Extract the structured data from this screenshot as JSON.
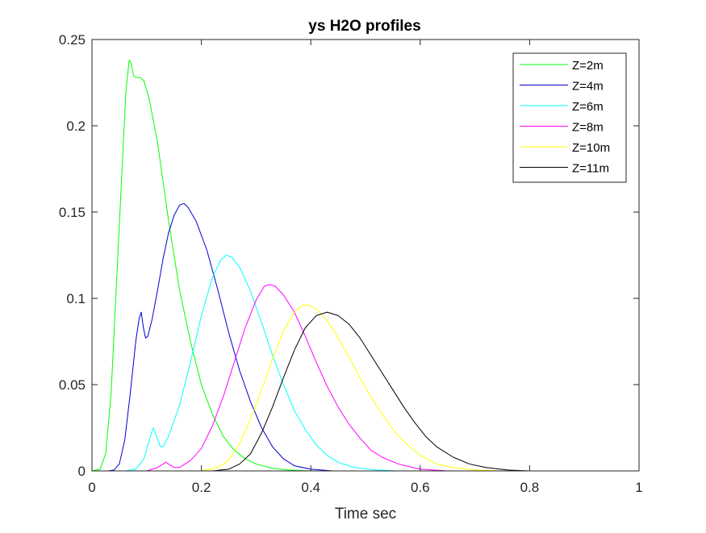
{
  "chart_data": {
    "type": "line",
    "title": "ys H2O profiles",
    "xlabel": "Time sec",
    "ylabel": "",
    "xlim": [
      0,
      1
    ],
    "ylim": [
      0,
      0.25
    ],
    "x_ticks": [
      "0",
      "0.2",
      "0.4",
      "0.6",
      "0.8",
      "1"
    ],
    "y_ticks": [
      "0",
      "0.05",
      "0.1",
      "0.15",
      "0.2",
      "0.25"
    ],
    "grid": false,
    "legend_position": "top-right",
    "series": [
      {
        "name": "Z=2m",
        "color": "#00ff00",
        "points": [
          [
            0,
            0
          ],
          [
            0.015,
            0.001
          ],
          [
            0.025,
            0.01
          ],
          [
            0.035,
            0.045
          ],
          [
            0.045,
            0.11
          ],
          [
            0.055,
            0.175
          ],
          [
            0.062,
            0.22
          ],
          [
            0.068,
            0.238
          ],
          [
            0.072,
            0.236
          ],
          [
            0.076,
            0.229
          ],
          [
            0.08,
            0.228
          ],
          [
            0.088,
            0.228
          ],
          [
            0.095,
            0.226
          ],
          [
            0.105,
            0.215
          ],
          [
            0.12,
            0.19
          ],
          [
            0.14,
            0.145
          ],
          [
            0.16,
            0.105
          ],
          [
            0.18,
            0.075
          ],
          [
            0.2,
            0.05
          ],
          [
            0.22,
            0.033
          ],
          [
            0.24,
            0.02
          ],
          [
            0.26,
            0.012
          ],
          [
            0.28,
            0.007
          ],
          [
            0.3,
            0.004
          ],
          [
            0.33,
            0.0015
          ],
          [
            0.36,
            0.0005
          ],
          [
            0.4,
            0
          ],
          [
            1,
            0
          ]
        ]
      },
      {
        "name": "Z=4m",
        "color": "#0000cd",
        "points": [
          [
            0,
            0
          ],
          [
            0.03,
            0
          ],
          [
            0.04,
            0.0005
          ],
          [
            0.05,
            0.004
          ],
          [
            0.06,
            0.018
          ],
          [
            0.07,
            0.045
          ],
          [
            0.08,
            0.075
          ],
          [
            0.086,
            0.088
          ],
          [
            0.09,
            0.092
          ],
          [
            0.094,
            0.083
          ],
          [
            0.098,
            0.077
          ],
          [
            0.102,
            0.078
          ],
          [
            0.11,
            0.088
          ],
          [
            0.12,
            0.105
          ],
          [
            0.13,
            0.123
          ],
          [
            0.14,
            0.138
          ],
          [
            0.15,
            0.148
          ],
          [
            0.16,
            0.154
          ],
          [
            0.168,
            0.155
          ],
          [
            0.175,
            0.153
          ],
          [
            0.19,
            0.145
          ],
          [
            0.21,
            0.128
          ],
          [
            0.23,
            0.105
          ],
          [
            0.25,
            0.08
          ],
          [
            0.27,
            0.058
          ],
          [
            0.29,
            0.04
          ],
          [
            0.31,
            0.025
          ],
          [
            0.33,
            0.014
          ],
          [
            0.35,
            0.007
          ],
          [
            0.37,
            0.003
          ],
          [
            0.4,
            0.001
          ],
          [
            0.44,
            0
          ],
          [
            1,
            0
          ]
        ]
      },
      {
        "name": "Z=6m",
        "color": "#00ffff",
        "points": [
          [
            0,
            0
          ],
          [
            0.06,
            0
          ],
          [
            0.08,
            0.001
          ],
          [
            0.095,
            0.007
          ],
          [
            0.105,
            0.018
          ],
          [
            0.112,
            0.025
          ],
          [
            0.118,
            0.02
          ],
          [
            0.125,
            0.014
          ],
          [
            0.13,
            0.014
          ],
          [
            0.14,
            0.02
          ],
          [
            0.16,
            0.038
          ],
          [
            0.18,
            0.063
          ],
          [
            0.2,
            0.09
          ],
          [
            0.22,
            0.112
          ],
          [
            0.235,
            0.122
          ],
          [
            0.245,
            0.125
          ],
          [
            0.255,
            0.124
          ],
          [
            0.27,
            0.118
          ],
          [
            0.29,
            0.104
          ],
          [
            0.31,
            0.086
          ],
          [
            0.33,
            0.067
          ],
          [
            0.35,
            0.05
          ],
          [
            0.37,
            0.035
          ],
          [
            0.39,
            0.024
          ],
          [
            0.41,
            0.015
          ],
          [
            0.43,
            0.009
          ],
          [
            0.45,
            0.005
          ],
          [
            0.48,
            0.002
          ],
          [
            0.52,
            0.0005
          ],
          [
            0.56,
            0
          ],
          [
            1,
            0
          ]
        ]
      },
      {
        "name": "Z=8m",
        "color": "#ff00ff",
        "points": [
          [
            0,
            0
          ],
          [
            0.1,
            0
          ],
          [
            0.12,
            0.002
          ],
          [
            0.13,
            0.004
          ],
          [
            0.135,
            0.005
          ],
          [
            0.14,
            0.004
          ],
          [
            0.15,
            0.002
          ],
          [
            0.16,
            0.002
          ],
          [
            0.18,
            0.006
          ],
          [
            0.2,
            0.013
          ],
          [
            0.22,
            0.026
          ],
          [
            0.24,
            0.043
          ],
          [
            0.26,
            0.063
          ],
          [
            0.28,
            0.083
          ],
          [
            0.3,
            0.099
          ],
          [
            0.315,
            0.107
          ],
          [
            0.325,
            0.108
          ],
          [
            0.335,
            0.107
          ],
          [
            0.35,
            0.102
          ],
          [
            0.37,
            0.092
          ],
          [
            0.39,
            0.078
          ],
          [
            0.41,
            0.063
          ],
          [
            0.43,
            0.049
          ],
          [
            0.45,
            0.037
          ],
          [
            0.47,
            0.027
          ],
          [
            0.49,
            0.019
          ],
          [
            0.51,
            0.012
          ],
          [
            0.53,
            0.008
          ],
          [
            0.56,
            0.004
          ],
          [
            0.6,
            0.001
          ],
          [
            0.65,
            0
          ],
          [
            1,
            0
          ]
        ]
      },
      {
        "name": "Z=10m",
        "color": "#ffff00",
        "points": [
          [
            0,
            0
          ],
          [
            0.2,
            0
          ],
          [
            0.23,
            0.002
          ],
          [
            0.25,
            0.006
          ],
          [
            0.27,
            0.016
          ],
          [
            0.29,
            0.03
          ],
          [
            0.31,
            0.047
          ],
          [
            0.33,
            0.065
          ],
          [
            0.35,
            0.081
          ],
          [
            0.37,
            0.092
          ],
          [
            0.385,
            0.096
          ],
          [
            0.395,
            0.096
          ],
          [
            0.41,
            0.094
          ],
          [
            0.43,
            0.087
          ],
          [
            0.45,
            0.077
          ],
          [
            0.47,
            0.066
          ],
          [
            0.49,
            0.054
          ],
          [
            0.51,
            0.043
          ],
          [
            0.53,
            0.033
          ],
          [
            0.55,
            0.024
          ],
          [
            0.57,
            0.017
          ],
          [
            0.6,
            0.009
          ],
          [
            0.63,
            0.004
          ],
          [
            0.66,
            0.002
          ],
          [
            0.7,
            0.0005
          ],
          [
            0.75,
            0
          ],
          [
            1,
            0
          ]
        ]
      },
      {
        "name": "Z=11m",
        "color": "#000000",
        "points": [
          [
            0,
            0
          ],
          [
            0.22,
            0
          ],
          [
            0.25,
            0.001
          ],
          [
            0.27,
            0.004
          ],
          [
            0.29,
            0.01
          ],
          [
            0.31,
            0.022
          ],
          [
            0.33,
            0.037
          ],
          [
            0.35,
            0.054
          ],
          [
            0.37,
            0.07
          ],
          [
            0.39,
            0.083
          ],
          [
            0.41,
            0.09
          ],
          [
            0.43,
            0.092
          ],
          [
            0.45,
            0.09
          ],
          [
            0.47,
            0.085
          ],
          [
            0.49,
            0.077
          ],
          [
            0.51,
            0.067
          ],
          [
            0.53,
            0.057
          ],
          [
            0.55,
            0.047
          ],
          [
            0.57,
            0.037
          ],
          [
            0.59,
            0.028
          ],
          [
            0.61,
            0.02
          ],
          [
            0.63,
            0.014
          ],
          [
            0.66,
            0.008
          ],
          [
            0.69,
            0.004
          ],
          [
            0.72,
            0.002
          ],
          [
            0.76,
            0.0005
          ],
          [
            0.8,
            0
          ],
          [
            1,
            0
          ]
        ]
      }
    ]
  }
}
